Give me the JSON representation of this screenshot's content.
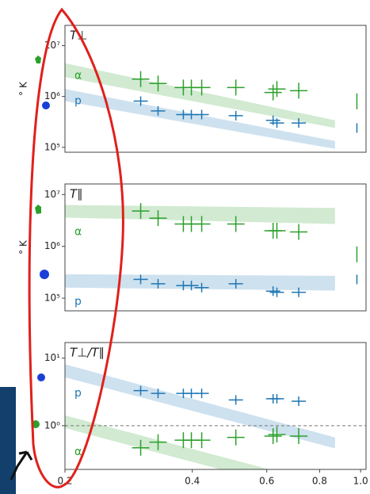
{
  "chart_data": [
    {
      "type": "scatter",
      "title": "T⊥",
      "ylabel": "° K",
      "xscale": "log",
      "yscale": "log",
      "xlim": [
        0.2,
        1.03
      ],
      "ylim": [
        80000,
        25000000
      ],
      "yticks": [
        {
          "value": 100000,
          "label": "10⁵"
        },
        {
          "value": 1000000,
          "label": "10⁶"
        },
        {
          "value": 10000000,
          "label": "10⁷"
        }
      ],
      "series": [
        {
          "name": "α",
          "color": "#2ca02c",
          "x": [
            0.302,
            0.332,
            0.381,
            0.398,
            0.421,
            0.507,
            0.621,
            0.634,
            0.714,
            0.98
          ],
          "values": [
            2200000,
            1800000,
            1500000,
            1500000,
            1500000,
            1500000,
            1200000,
            1400000,
            1300000,
            800000
          ],
          "band": {
            "x": [
              0.2,
              0.87
            ],
            "lower": [
              2400000,
              240000
            ],
            "upper": [
              4500000,
              340000
            ]
          }
        },
        {
          "name": "p",
          "color": "#1f77b4",
          "x": [
            0.302,
            0.332,
            0.381,
            0.398,
            0.421,
            0.507,
            0.621,
            0.634,
            0.714,
            0.98
          ],
          "values": [
            810000,
            520000,
            440000,
            440000,
            440000,
            420000,
            340000,
            300000,
            300000,
            240000
          ],
          "band": {
            "x": [
              0.2,
              0.87
            ],
            "lower": [
              810000,
              93000
            ],
            "upper": [
              1400000,
              133000
            ]
          }
        }
      ]
    },
    {
      "type": "scatter",
      "title": "T∥",
      "ylabel": "° K",
      "xscale": "log",
      "yscale": "log",
      "xlim": [
        0.2,
        1.03
      ],
      "ylim": [
        57000,
        16000000
      ],
      "yticks": [
        {
          "value": 100000,
          "label": "10⁵"
        },
        {
          "value": 1000000,
          "label": "10⁶"
        },
        {
          "value": 10000000,
          "label": "10⁷"
        }
      ],
      "series": [
        {
          "name": "α",
          "color": "#2ca02c",
          "x": [
            0.302,
            0.332,
            0.381,
            0.398,
            0.421,
            0.507,
            0.621,
            0.634,
            0.714,
            0.98
          ],
          "values": [
            4800000,
            3500000,
            2700000,
            2700000,
            2700000,
            2700000,
            2000000,
            2000000,
            1900000,
            700000
          ],
          "band": {
            "x": [
              0.2,
              0.87
            ],
            "lower": [
              3600000,
              2700000
            ],
            "upper": [
              6300000,
              5500000
            ]
          }
        },
        {
          "name": "p",
          "color": "#1f77b4",
          "x": [
            0.302,
            0.332,
            0.381,
            0.398,
            0.421,
            0.507,
            0.621,
            0.634,
            0.714,
            0.98
          ],
          "values": [
            230000,
            190000,
            175000,
            175000,
            160000,
            190000,
            137000,
            130000,
            130000,
            230000
          ],
          "band": {
            "x": [
              0.2,
              0.87
            ],
            "lower": [
              160000,
              140000
            ],
            "upper": [
              290000,
              270000
            ]
          }
        }
      ]
    },
    {
      "type": "scatter",
      "title": "T⊥/T∥",
      "xscale": "log",
      "yscale": "log",
      "xlim": [
        0.2,
        1.03
      ],
      "ylim": [
        0.225,
        17
      ],
      "hline": 1,
      "yticks": [
        {
          "value": 1,
          "label": "10⁰"
        },
        {
          "value": 10,
          "label": "10¹"
        }
      ],
      "xticks": [
        0.2,
        0.4,
        0.6,
        0.8,
        {
          "value": 1,
          "label": "1.0"
        }
      ],
      "series": [
        {
          "name": "p",
          "color": "#1f77b4",
          "x": [
            0.302,
            0.332,
            0.381,
            0.398,
            0.421,
            0.507,
            0.621,
            0.634,
            0.714
          ],
          "values": [
            3.3,
            3.0,
            3.0,
            3.0,
            3.0,
            2.4,
            2.5,
            2.5,
            2.3
          ],
          "band": {
            "x": [
              0.2,
              0.87
            ],
            "lower": [
              5.2,
              0.46
            ],
            "upper": [
              8.1,
              0.67
            ]
          }
        },
        {
          "name": "α",
          "color": "#2ca02c",
          "x": [
            0.302,
            0.332,
            0.381,
            0.398,
            0.421,
            0.507,
            0.621,
            0.634,
            0.714
          ],
          "values": [
            0.47,
            0.57,
            0.61,
            0.61,
            0.61,
            0.67,
            0.7,
            0.74,
            0.7
          ],
          "band": {
            "x": [
              0.2,
              0.87
            ],
            "lower": [
              0.92,
              0.08
            ],
            "upper": [
              1.42,
              0.125
            ]
          }
        }
      ]
    }
  ]
}
